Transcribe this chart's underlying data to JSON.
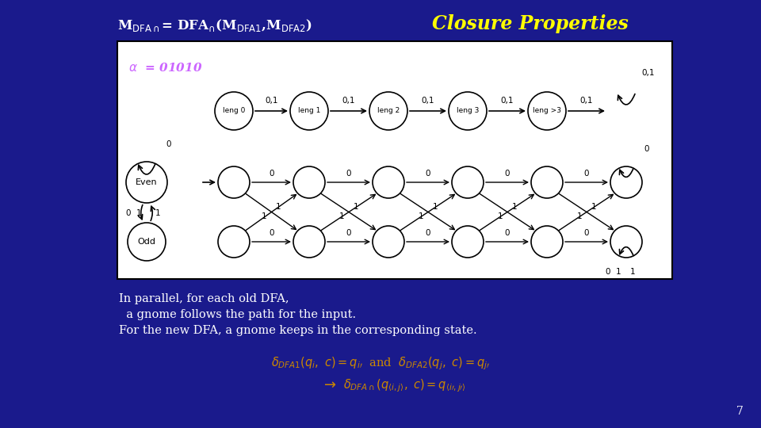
{
  "bg_color": "#1a1a8c",
  "title_left_color": "#ffffff",
  "title_right_color": "#ffff00",
  "alpha_color": "#cc66ff",
  "body_color": "#ffffff",
  "formula_color": "#cc8800",
  "page_number": "7",
  "diagram_bg": "#ffffff",
  "diagram_border": "#000000",
  "body_text_lines": [
    "In parallel, for each old DFA,",
    "  a gnome follows the path for the input.",
    "For the new DFA, a gnome keeps in the corresponding state."
  ]
}
